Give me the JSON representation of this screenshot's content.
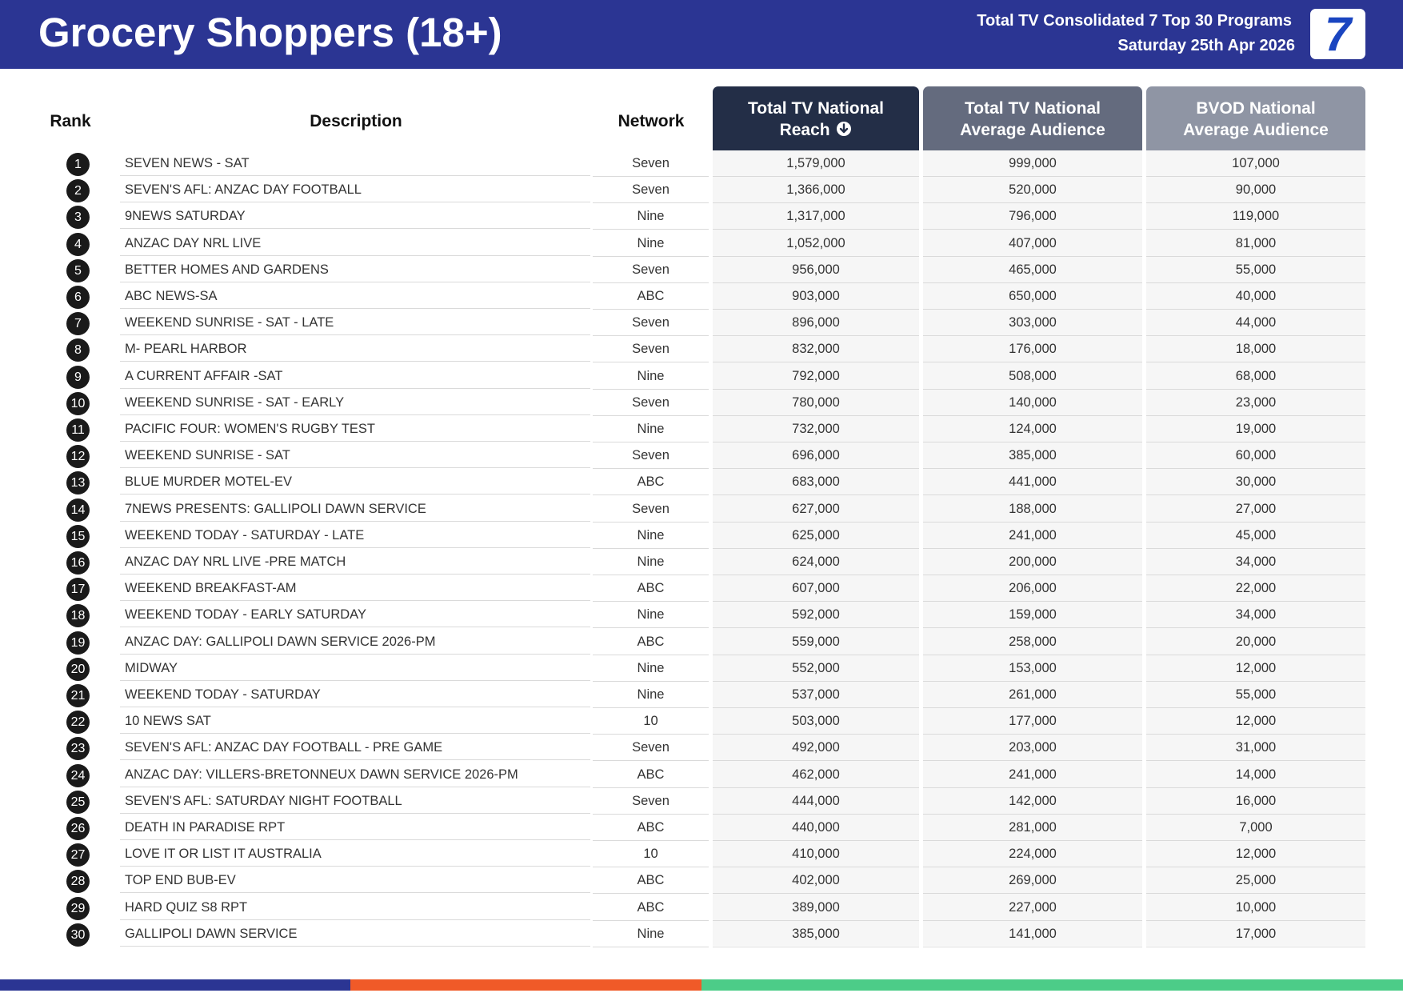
{
  "header": {
    "title": "Grocery Shoppers (18+)",
    "subtitle_line1": "Total TV Consolidated 7 Top 30 Programs",
    "subtitle_line2": "Saturday 25th Apr 2026",
    "logo_text": "7",
    "logo_color": "#1a45c0",
    "background_color": "#2b3593"
  },
  "columns": {
    "rank": "Rank",
    "description": "Description",
    "network": "Network",
    "reach_line1": "Total TV National",
    "reach_line2": "Reach",
    "reach_sort_icon": "arrow-down-circle-icon",
    "avg_line1": "Total TV National",
    "avg_line2": "Average Audience",
    "bvod_line1": "BVOD National",
    "bvod_line2": "Average Audience",
    "reach_color": "#232e47",
    "avg_color": "#646b7e",
    "bvod_color": "#8f95a4"
  },
  "rows": [
    {
      "rank": "1",
      "description": "SEVEN NEWS - SAT",
      "network": "Seven",
      "reach": "1,579,000",
      "avg": "999,000",
      "bvod": "107,000"
    },
    {
      "rank": "2",
      "description": "SEVEN'S AFL: ANZAC DAY FOOTBALL",
      "network": "Seven",
      "reach": "1,366,000",
      "avg": "520,000",
      "bvod": "90,000"
    },
    {
      "rank": "3",
      "description": "9NEWS SATURDAY",
      "network": "Nine",
      "reach": "1,317,000",
      "avg": "796,000",
      "bvod": "119,000"
    },
    {
      "rank": "4",
      "description": "ANZAC DAY NRL LIVE",
      "network": "Nine",
      "reach": "1,052,000",
      "avg": "407,000",
      "bvod": "81,000"
    },
    {
      "rank": "5",
      "description": "BETTER HOMES AND GARDENS",
      "network": "Seven",
      "reach": "956,000",
      "avg": "465,000",
      "bvod": "55,000"
    },
    {
      "rank": "6",
      "description": "ABC NEWS-SA",
      "network": "ABC",
      "reach": "903,000",
      "avg": "650,000",
      "bvod": "40,000"
    },
    {
      "rank": "7",
      "description": "WEEKEND SUNRISE - SAT - LATE",
      "network": "Seven",
      "reach": "896,000",
      "avg": "303,000",
      "bvod": "44,000"
    },
    {
      "rank": "8",
      "description": "M- PEARL HARBOR",
      "network": "Seven",
      "reach": "832,000",
      "avg": "176,000",
      "bvod": "18,000"
    },
    {
      "rank": "9",
      "description": "A CURRENT AFFAIR -SAT",
      "network": "Nine",
      "reach": "792,000",
      "avg": "508,000",
      "bvod": "68,000"
    },
    {
      "rank": "10",
      "description": "WEEKEND SUNRISE - SAT - EARLY",
      "network": "Seven",
      "reach": "780,000",
      "avg": "140,000",
      "bvod": "23,000"
    },
    {
      "rank": "11",
      "description": "PACIFIC FOUR: WOMEN'S RUGBY TEST",
      "network": "Nine",
      "reach": "732,000",
      "avg": "124,000",
      "bvod": "19,000"
    },
    {
      "rank": "12",
      "description": "WEEKEND SUNRISE - SAT",
      "network": "Seven",
      "reach": "696,000",
      "avg": "385,000",
      "bvod": "60,000"
    },
    {
      "rank": "13",
      "description": "BLUE MURDER MOTEL-EV",
      "network": "ABC",
      "reach": "683,000",
      "avg": "441,000",
      "bvod": "30,000"
    },
    {
      "rank": "14",
      "description": "7NEWS PRESENTS: GALLIPOLI DAWN SERVICE",
      "network": "Seven",
      "reach": "627,000",
      "avg": "188,000",
      "bvod": "27,000"
    },
    {
      "rank": "15",
      "description": "WEEKEND TODAY - SATURDAY - LATE",
      "network": "Nine",
      "reach": "625,000",
      "avg": "241,000",
      "bvod": "45,000"
    },
    {
      "rank": "16",
      "description": "ANZAC DAY NRL LIVE -PRE MATCH",
      "network": "Nine",
      "reach": "624,000",
      "avg": "200,000",
      "bvod": "34,000"
    },
    {
      "rank": "17",
      "description": "WEEKEND BREAKFAST-AM",
      "network": "ABC",
      "reach": "607,000",
      "avg": "206,000",
      "bvod": "22,000"
    },
    {
      "rank": "18",
      "description": "WEEKEND TODAY - EARLY SATURDAY",
      "network": "Nine",
      "reach": "592,000",
      "avg": "159,000",
      "bvod": "34,000"
    },
    {
      "rank": "19",
      "description": "ANZAC DAY: GALLIPOLI DAWN SERVICE 2026-PM",
      "network": "ABC",
      "reach": "559,000",
      "avg": "258,000",
      "bvod": "20,000"
    },
    {
      "rank": "20",
      "description": "MIDWAY",
      "network": "Nine",
      "reach": "552,000",
      "avg": "153,000",
      "bvod": "12,000"
    },
    {
      "rank": "21",
      "description": "WEEKEND TODAY - SATURDAY",
      "network": "Nine",
      "reach": "537,000",
      "avg": "261,000",
      "bvod": "55,000"
    },
    {
      "rank": "22",
      "description": "10 NEWS SAT",
      "network": "10",
      "reach": "503,000",
      "avg": "177,000",
      "bvod": "12,000"
    },
    {
      "rank": "23",
      "description": "SEVEN'S AFL: ANZAC DAY FOOTBALL - PRE GAME",
      "network": "Seven",
      "reach": "492,000",
      "avg": "203,000",
      "bvod": "31,000"
    },
    {
      "rank": "24",
      "description": "ANZAC DAY: VILLERS-BRETONNEUX DAWN SERVICE 2026-PM",
      "network": "ABC",
      "reach": "462,000",
      "avg": "241,000",
      "bvod": "14,000"
    },
    {
      "rank": "25",
      "description": "SEVEN'S AFL: SATURDAY NIGHT FOOTBALL",
      "network": "Seven",
      "reach": "444,000",
      "avg": "142,000",
      "bvod": "16,000"
    },
    {
      "rank": "26",
      "description": "DEATH IN PARADISE RPT",
      "network": "ABC",
      "reach": "440,000",
      "avg": "281,000",
      "bvod": "7,000"
    },
    {
      "rank": "27",
      "description": "LOVE IT OR LIST IT AUSTRALIA",
      "network": "10",
      "reach": "410,000",
      "avg": "224,000",
      "bvod": "12,000"
    },
    {
      "rank": "28",
      "description": "TOP END BUB-EV",
      "network": "ABC",
      "reach": "402,000",
      "avg": "269,000",
      "bvod": "25,000"
    },
    {
      "rank": "29",
      "description": "HARD QUIZ S8 RPT",
      "network": "ABC",
      "reach": "389,000",
      "avg": "227,000",
      "bvod": "10,000"
    },
    {
      "rank": "30",
      "description": "GALLIPOLI DAWN SERVICE",
      "network": "Nine",
      "reach": "385,000",
      "avg": "141,000",
      "bvod": "17,000"
    }
  ],
  "footer_colors": [
    "#2b3593",
    "#f05a28",
    "#4ccc88"
  ]
}
